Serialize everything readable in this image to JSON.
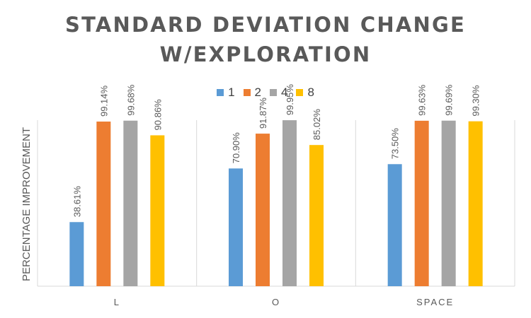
{
  "chart_data": {
    "type": "bar",
    "title_lines": [
      "STANDARD DEVIATION CHANGE",
      "W/EXPLORATION"
    ],
    "ylabel": "PERCENTAGE IMPROVEMENT",
    "xlabel": "",
    "categories": [
      "L",
      "O",
      "SPACE"
    ],
    "ylim": [
      0,
      100
    ],
    "grid": false,
    "legend_position": "top",
    "series": [
      {
        "name": "1",
        "color": "#5b9bd5",
        "values": [
          38.61,
          70.9,
          73.5
        ],
        "labels": [
          "38.61%",
          "70.90%",
          "73.50%"
        ]
      },
      {
        "name": "2",
        "color": "#ed7d31",
        "values": [
          99.14,
          91.87,
          99.63
        ],
        "labels": [
          "99.14%",
          "91.87%",
          "99.63%"
        ]
      },
      {
        "name": "4",
        "color": "#a5a5a5",
        "values": [
          99.68,
          99.95,
          99.69
        ],
        "labels": [
          "99.68%",
          "99.95%",
          "99.69%"
        ]
      },
      {
        "name": "8",
        "color": "#ffc000",
        "values": [
          90.86,
          85.02,
          99.3
        ],
        "labels": [
          "90.86%",
          "85.02%",
          "99.30%"
        ]
      }
    ]
  }
}
